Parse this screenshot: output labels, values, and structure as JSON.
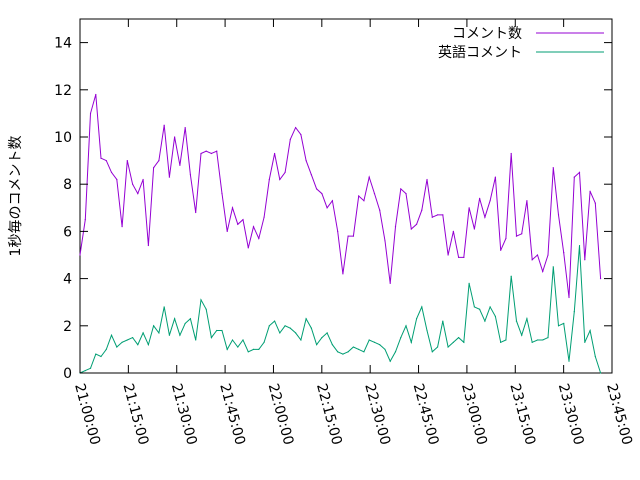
{
  "chart_data": {
    "type": "line",
    "title": "",
    "xlabel": "",
    "ylabel": "1秒毎のコメント数",
    "ylim": [
      0,
      15
    ],
    "yticks": [
      0,
      2,
      4,
      6,
      8,
      10,
      12,
      14
    ],
    "xlim": [
      "21:00:00",
      "23:45:00"
    ],
    "xticks": [
      "21:00:00",
      "21:15:00",
      "21:30:00",
      "21:45:00",
      "22:00:00",
      "22:15:00",
      "22:30:00",
      "22:45:00",
      "23:00:00",
      "23:15:00",
      "23:30:00",
      "23:45:00"
    ],
    "grid": false,
    "legend": "top-right",
    "x": [
      "21:00:00",
      "21:01:38",
      "21:03:16",
      "21:04:54",
      "21:06:31",
      "21:08:09",
      "21:09:47",
      "21:11:25",
      "21:13:03",
      "21:14:41",
      "21:16:19",
      "21:17:56",
      "21:19:34",
      "21:21:12",
      "21:22:50",
      "21:24:28",
      "21:26:06",
      "21:27:44",
      "21:29:21",
      "21:30:59",
      "21:32:37",
      "21:34:15",
      "21:35:53",
      "21:37:31",
      "21:39:08",
      "21:40:46",
      "21:42:24",
      "21:44:02",
      "21:45:40",
      "21:47:18",
      "21:48:56",
      "21:50:33",
      "21:52:11",
      "21:53:49",
      "21:55:27",
      "21:57:05",
      "21:58:43",
      "22:00:21",
      "22:01:58",
      "22:03:36",
      "22:05:14",
      "22:06:52",
      "22:08:30",
      "22:10:08",
      "22:11:46",
      "22:13:23",
      "22:15:01",
      "22:16:39",
      "22:18:17",
      "22:19:55",
      "22:21:33",
      "22:23:10",
      "22:24:48",
      "22:26:26",
      "22:28:04",
      "22:29:42",
      "22:31:20",
      "22:32:58",
      "22:34:35",
      "22:36:13",
      "22:37:51",
      "22:39:29",
      "22:41:07",
      "22:42:45",
      "22:44:23",
      "22:46:00",
      "22:47:38",
      "22:49:16",
      "22:50:54",
      "22:52:32",
      "22:54:10",
      "22:55:48",
      "22:57:25",
      "22:59:03",
      "23:00:41",
      "23:02:19",
      "23:03:57",
      "23:05:35",
      "23:07:12",
      "23:08:50",
      "23:10:28",
      "23:12:06",
      "23:13:44",
      "23:15:22",
      "23:17:00",
      "23:18:37",
      "23:20:15",
      "23:21:53",
      "23:23:31",
      "23:25:09",
      "23:26:47",
      "23:28:25",
      "23:30:02",
      "23:31:40",
      "23:33:18",
      "23:34:56",
      "23:36:34",
      "23:38:12",
      "23:39:50",
      "23:41:27"
    ],
    "series": [
      {
        "name": "コメント数",
        "color": "#9400d3",
        "values": [
          5.0,
          6.5,
          11.0,
          11.8,
          9.1,
          9.0,
          8.5,
          8.2,
          6.2,
          9.0,
          8.0,
          7.6,
          8.2,
          5.4,
          8.7,
          9.0,
          10.5,
          8.3,
          10.0,
          8.8,
          10.4,
          8.4,
          6.8,
          9.3,
          9.4,
          9.3,
          9.4,
          7.6,
          6.0,
          7.0,
          6.3,
          6.5,
          5.3,
          6.2,
          5.7,
          6.6,
          8.2,
          9.3,
          8.2,
          8.5,
          9.9,
          10.4,
          10.1,
          9.0,
          8.4,
          7.8,
          7.6,
          7.0,
          7.3,
          6.0,
          4.2,
          5.8,
          5.8,
          7.5,
          7.3,
          8.3,
          7.6,
          6.9,
          5.6,
          3.8,
          6.2,
          7.8,
          7.6,
          6.1,
          6.3,
          6.9,
          8.2,
          6.6,
          6.7,
          6.7,
          5.0,
          6.0,
          4.9,
          4.9,
          7.0,
          6.1,
          7.4,
          6.6,
          7.3,
          8.3,
          5.2,
          5.7,
          9.3,
          5.8,
          5.9,
          7.3,
          4.8,
          5.0,
          4.3,
          5.0,
          8.7,
          6.7,
          5.1,
          3.2,
          8.3,
          8.5,
          4.8,
          7.7,
          7.2,
          4.0
        ]
      },
      {
        "name": "英語コメント",
        "color": "#009e73",
        "values": [
          0.0,
          0.1,
          0.2,
          0.8,
          0.7,
          1.0,
          1.6,
          1.1,
          1.3,
          1.4,
          1.5,
          1.2,
          1.7,
          1.2,
          2.0,
          1.7,
          2.8,
          1.6,
          2.3,
          1.6,
          2.1,
          2.3,
          1.4,
          3.1,
          2.7,
          1.5,
          1.8,
          1.8,
          1.0,
          1.4,
          1.1,
          1.4,
          0.9,
          1.0,
          1.0,
          1.3,
          2.0,
          2.2,
          1.7,
          2.0,
          1.9,
          1.7,
          1.4,
          2.3,
          1.9,
          1.2,
          1.5,
          1.7,
          1.2,
          0.9,
          0.8,
          0.9,
          1.1,
          1.0,
          0.9,
          1.4,
          1.3,
          1.2,
          1.0,
          0.5,
          0.9,
          1.5,
          2.0,
          1.3,
          2.3,
          2.8,
          1.8,
          0.9,
          1.1,
          2.2,
          1.1,
          1.3,
          1.5,
          1.3,
          3.8,
          2.8,
          2.7,
          2.2,
          2.8,
          2.4,
          1.3,
          1.4,
          4.1,
          2.2,
          1.6,
          2.3,
          1.3,
          1.4,
          1.4,
          1.5,
          4.5,
          2.0,
          2.1,
          0.5,
          2.6,
          5.4,
          1.3,
          1.8,
          0.7,
          0.0
        ]
      }
    ]
  }
}
